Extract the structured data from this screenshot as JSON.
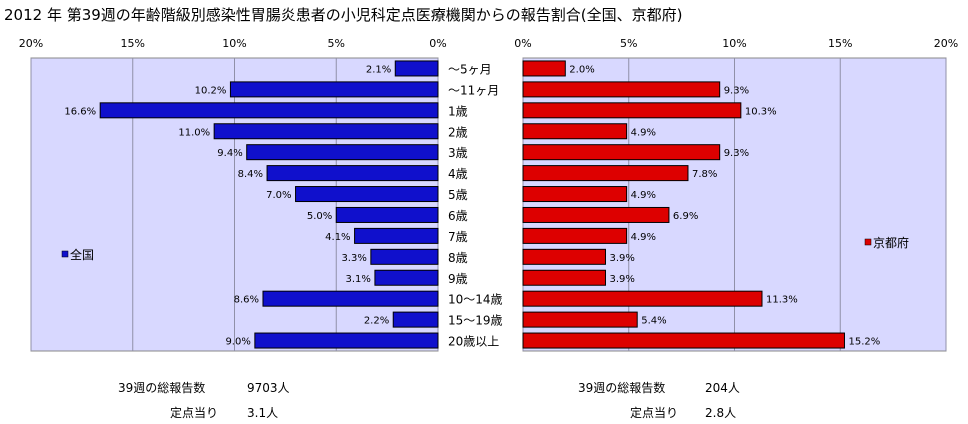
{
  "title": "2012 年 第39週の年齢階級別感染性胃腸炎患者の小児科定点医療機関からの報告割合(全国、京都府)",
  "chart_data": {
    "type": "bar",
    "categories": [
      "〜5ヶ月",
      "〜11ヶ月",
      "1歳",
      "2歳",
      "3歳",
      "4歳",
      "5歳",
      "6歳",
      "7歳",
      "8歳",
      "9歳",
      "10〜14歳",
      "15〜19歳",
      "20歳以上"
    ],
    "series": [
      {
        "name": "全国",
        "color": "#1010cc",
        "values": [
          2.1,
          10.2,
          16.6,
          11.0,
          9.4,
          8.4,
          7.0,
          5.0,
          4.1,
          3.3,
          3.1,
          8.6,
          2.2,
          9.0
        ],
        "labels": [
          "2.1%",
          "10.2%",
          "16.6%",
          "11.0%",
          "9.4%",
          "8.4%",
          "7.0%",
          "5.0%",
          "4.1%",
          "3.3%",
          "3.1%",
          "8.6%",
          "2.2%",
          "9.0%"
        ]
      },
      {
        "name": "京都府",
        "color": "#dd0000",
        "values": [
          2.0,
          9.3,
          10.3,
          4.9,
          9.3,
          7.8,
          4.9,
          6.9,
          4.9,
          3.9,
          3.9,
          11.3,
          5.4,
          15.2
        ],
        "labels": [
          "2.0%",
          "9.3%",
          "10.3%",
          "4.9%",
          "9.3%",
          "7.8%",
          "4.9%",
          "6.9%",
          "4.9%",
          "3.9%",
          "3.9%",
          "11.3%",
          "5.4%",
          "15.2%"
        ]
      }
    ],
    "xlim": [
      0,
      20
    ],
    "ticks": [
      "0%",
      "5%",
      "10%",
      "15%",
      "20%"
    ],
    "left_ticks": [
      "20%",
      "15%",
      "10%",
      "5%",
      "0%"
    ],
    "grid": true,
    "plot_background": "#d8d8ff"
  },
  "footer": {
    "left": {
      "label1": "39週の総報告数",
      "value1": "9703人",
      "label2": "定点当り",
      "value2": "3.1人"
    },
    "right": {
      "label1": "39週の総報告数",
      "value1": "204人",
      "label2": "定点当り",
      "value2": "2.8人"
    }
  }
}
